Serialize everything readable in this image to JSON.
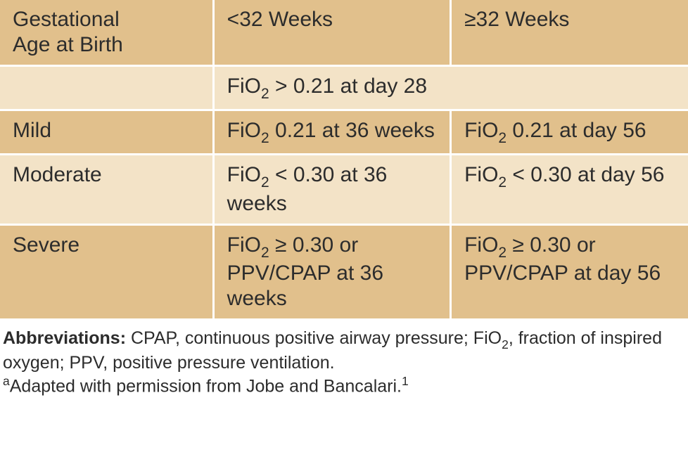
{
  "table": {
    "colors": {
      "header_bg": "#e1c08c",
      "row_even_bg": "#f3e3c7",
      "row_odd_bg": "#e1c08c",
      "divider": "#ffffff",
      "text": "#2c2c2c"
    },
    "header": {
      "col1_line1": "Gestational",
      "col1_line2": "Age at Birth",
      "col2": "<32 Weeks",
      "col3": "≥32 Weeks"
    },
    "criteria_row": {
      "label": "",
      "span_pre": "FiO",
      "span_sub": "2",
      "span_post": " > 0.21 at day 28"
    },
    "rows": [
      {
        "label": "Mild",
        "c2_pre": "FiO",
        "c2_sub": "2",
        "c2_post": " 0.21 at 36 weeks",
        "c3_pre": "FiO",
        "c3_sub": "2",
        "c3_post": " 0.21 at day 56"
      },
      {
        "label": "Moderate",
        "c2_pre": "FiO",
        "c2_sub": "2",
        "c2_post": " < 0.30 at 36 weeks",
        "c3_pre": "FiO",
        "c3_sub": "2",
        "c3_post": " < 0.30 at day 56"
      },
      {
        "label": "Severe",
        "c2_pre": "FiO",
        "c2_sub": "2",
        "c2_post": " ≥ 0.30 or PPV/CPAP at 36 weeks",
        "c3_pre": "FiO",
        "c3_sub": "2",
        "c3_post": " ≥ 0.30 or PPV/CPAP at day 56"
      }
    ]
  },
  "footer": {
    "abbr_label": "Abbreviations:",
    "abbr_text_pre": " CPAP, continuous positive airway pressure; FiO",
    "abbr_sub": "2",
    "abbr_text_post": ", fraction of inspired oxygen; PPV, positive pressure ventilation.",
    "credit_sup": "a",
    "credit_text": "Adapted with permission from Jobe and Bancalari.",
    "credit_ref_sup": "1"
  }
}
